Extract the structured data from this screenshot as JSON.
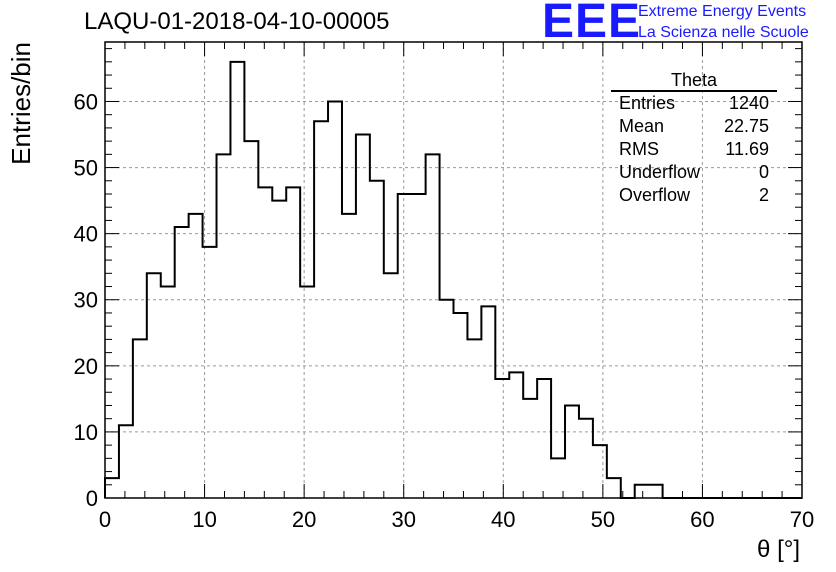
{
  "header": {
    "run_title": "LAQU-01-2018-04-10-00005",
    "logo_text": "EEE",
    "logo_line1": "Extreme Energy Events",
    "logo_line2": "La Scienza nelle Scuole",
    "logo_color": "#1a1aff"
  },
  "stats": {
    "title": "Theta",
    "rows": [
      {
        "label": "Entries",
        "value": "1240"
      },
      {
        "label": "Mean",
        "value": "22.75"
      },
      {
        "label": "RMS",
        "value": "11.69"
      },
      {
        "label": "Underflow",
        "value": "0"
      },
      {
        "label": "Overflow",
        "value": "2"
      }
    ]
  },
  "chart_data": {
    "type": "histogram",
    "title": "LAQU-01-2018-04-10-00005",
    "xlabel": "θ [°]",
    "ylabel": "Entries/bin",
    "xlim": [
      0,
      70
    ],
    "ylim": [
      0,
      69
    ],
    "bin_width": 1.4,
    "x_ticks": [
      0,
      10,
      20,
      30,
      40,
      50,
      60,
      70
    ],
    "y_ticks": [
      0,
      10,
      20,
      30,
      40,
      50,
      60
    ],
    "grid": true,
    "series": [
      {
        "bin_edges_start": 0,
        "values": [
          3,
          11,
          24,
          34,
          32,
          41,
          43,
          38,
          52,
          66,
          54,
          47,
          45,
          47,
          32,
          57,
          60,
          43,
          55,
          48,
          34,
          46,
          46,
          52,
          30,
          28,
          24,
          29,
          18,
          19,
          15,
          18,
          6,
          14,
          12,
          8,
          3,
          0,
          2,
          2,
          0,
          0,
          0,
          0,
          0,
          0,
          0,
          0,
          0,
          0
        ]
      }
    ]
  }
}
